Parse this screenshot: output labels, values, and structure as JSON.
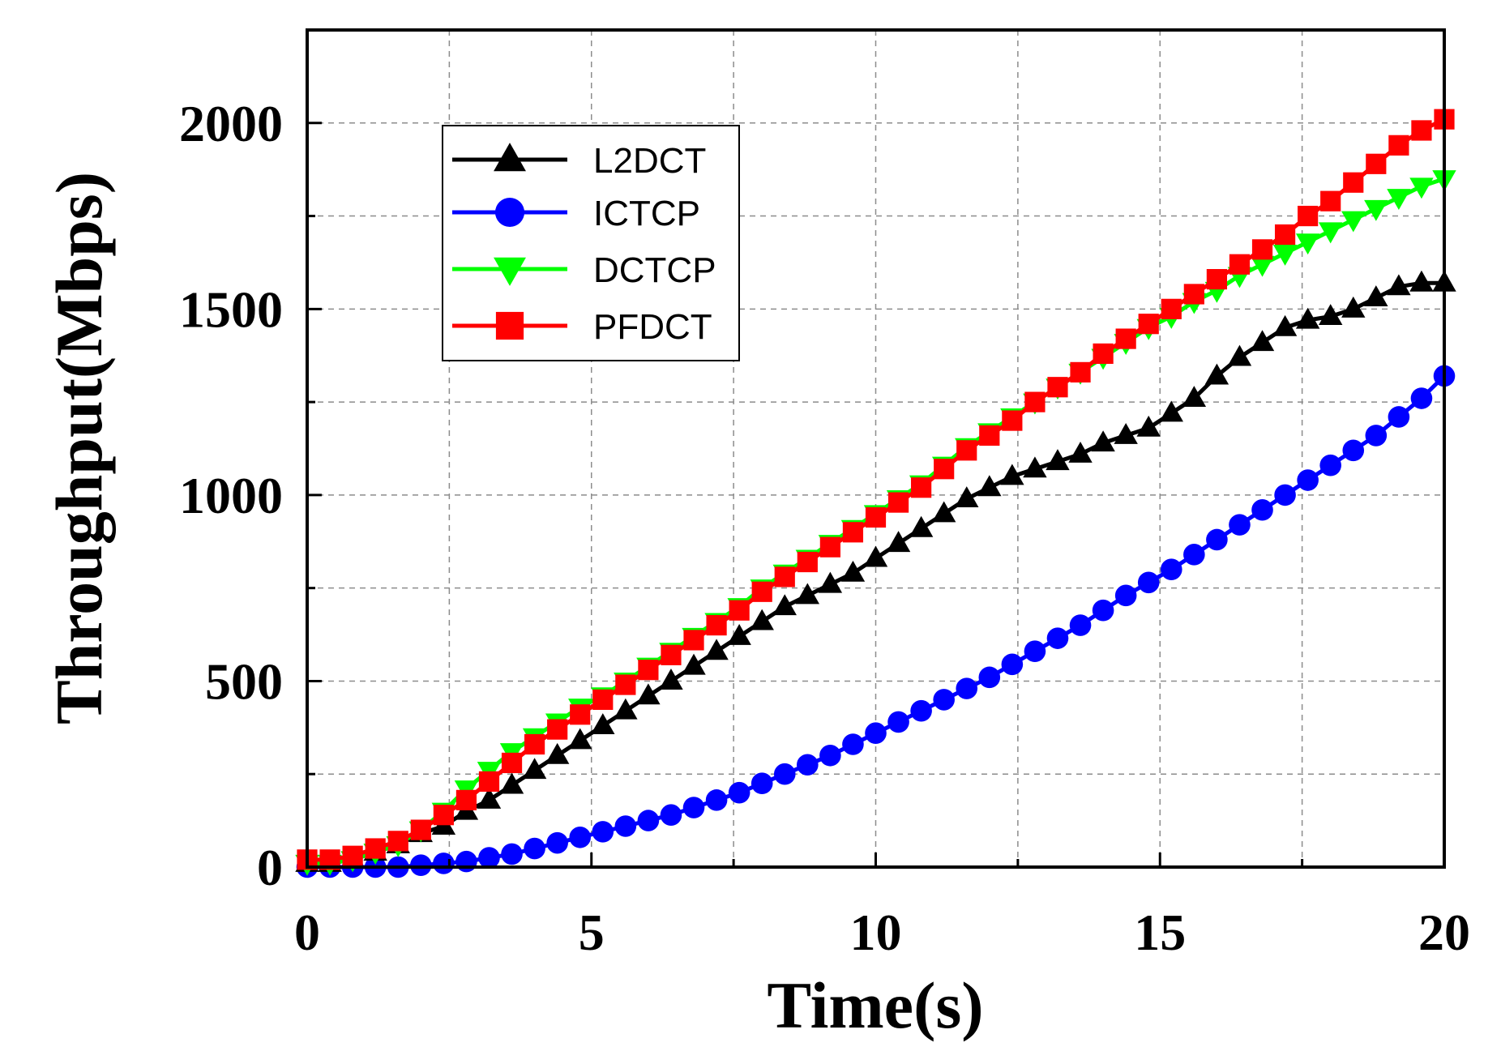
{
  "chart_data": {
    "type": "line",
    "title": "",
    "xlabel": "Time(s)",
    "ylabel": "Throughput(Mbps)",
    "xlim": [
      0,
      20
    ],
    "ylim": [
      0,
      2250
    ],
    "xticks": [
      0,
      5,
      10,
      15,
      20
    ],
    "yticks": [
      0,
      500,
      1000,
      1500,
      2000
    ],
    "xtick_labels": [
      "0",
      "5",
      "10",
      "15",
      "20"
    ],
    "ytick_labels": [
      "0",
      "500",
      "1000",
      "1500",
      "2000"
    ],
    "grid": true,
    "legend_position": "top-left",
    "x": [
      0.0,
      0.4,
      0.8,
      1.2,
      1.6,
      2.0,
      2.4,
      2.8,
      3.2,
      3.6,
      4.0,
      4.4,
      4.8,
      5.2,
      5.6,
      6.0,
      6.4,
      6.8,
      7.2,
      7.6,
      8.0,
      8.4,
      8.8,
      9.2,
      9.6,
      10.0,
      10.4,
      10.8,
      11.2,
      11.6,
      12.0,
      12.4,
      12.8,
      13.2,
      13.6,
      14.0,
      14.4,
      14.8,
      15.2,
      15.6,
      16.0,
      16.4,
      16.8,
      17.2,
      17.6,
      18.0,
      18.4,
      18.8,
      19.2,
      19.6,
      20.0
    ],
    "series": [
      {
        "name": "L2DCT",
        "color": "#000000",
        "marker": "triangle-up",
        "values": [
          10,
          10,
          20,
          40,
          60,
          90,
          110,
          150,
          180,
          220,
          260,
          300,
          340,
          380,
          420,
          460,
          500,
          540,
          580,
          620,
          660,
          700,
          730,
          760,
          790,
          830,
          870,
          910,
          950,
          990,
          1020,
          1050,
          1070,
          1090,
          1110,
          1140,
          1160,
          1180,
          1220,
          1260,
          1320,
          1370,
          1410,
          1450,
          1470,
          1480,
          1500,
          1530,
          1560,
          1570,
          1570
        ]
      },
      {
        "name": "ICTCP",
        "color": "#0000ff",
        "marker": "circle",
        "values": [
          0,
          0,
          0,
          0,
          0,
          5,
          10,
          15,
          25,
          35,
          50,
          65,
          80,
          95,
          110,
          125,
          140,
          160,
          180,
          200,
          225,
          250,
          275,
          300,
          330,
          360,
          390,
          420,
          450,
          480,
          510,
          545,
          580,
          615,
          650,
          690,
          730,
          765,
          800,
          840,
          880,
          920,
          960,
          1000,
          1040,
          1080,
          1120,
          1160,
          1210,
          1260,
          1320
        ]
      },
      {
        "name": "DCTCP",
        "color": "#00ff00",
        "marker": "triangle-down",
        "values": [
          10,
          10,
          20,
          40,
          60,
          100,
          150,
          210,
          260,
          310,
          350,
          390,
          430,
          460,
          500,
          540,
          580,
          620,
          660,
          700,
          750,
          790,
          830,
          870,
          910,
          950,
          990,
          1030,
          1080,
          1130,
          1170,
          1210,
          1250,
          1290,
          1330,
          1370,
          1410,
          1450,
          1480,
          1520,
          1550,
          1590,
          1620,
          1650,
          1680,
          1710,
          1740,
          1770,
          1800,
          1830,
          1850
        ]
      },
      {
        "name": "PFDCT",
        "color": "#ff0000",
        "marker": "square",
        "values": [
          20,
          20,
          30,
          50,
          70,
          100,
          140,
          180,
          230,
          280,
          330,
          370,
          410,
          450,
          490,
          530,
          570,
          610,
          650,
          690,
          740,
          780,
          820,
          860,
          900,
          940,
          980,
          1020,
          1070,
          1120,
          1160,
          1200,
          1250,
          1290,
          1330,
          1380,
          1420,
          1460,
          1500,
          1540,
          1580,
          1620,
          1660,
          1700,
          1750,
          1790,
          1840,
          1890,
          1940,
          1980,
          2010
        ]
      }
    ]
  }
}
